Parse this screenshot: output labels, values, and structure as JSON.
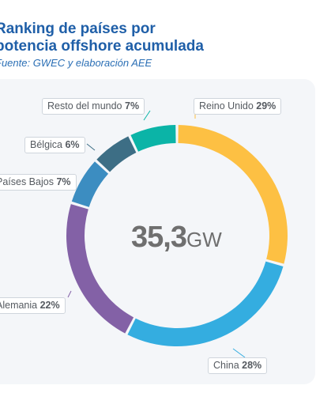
{
  "title_line1": "Ranking de países por",
  "title_line2": "potencia offshore acumulada",
  "source": "Fuente: GWEC y elaboración AEE",
  "center_value": "35,3",
  "center_unit": "GW",
  "chart_data": {
    "type": "pie",
    "donut": true,
    "categories": [
      "Reino Unido",
      "China",
      "Alemania",
      "Países Bajos",
      "Bélgica",
      "Resto del mundo"
    ],
    "values": [
      29,
      28,
      22,
      7,
      6,
      7
    ],
    "value_labels": [
      "29%",
      "28%",
      "22%",
      "7%",
      "6%",
      "7%"
    ],
    "colors": [
      "#fdc043",
      "#34ade0",
      "#8361a6",
      "#3c8dc1",
      "#3d6e85",
      "#0bb4a7"
    ],
    "total_label": "35,3 GW"
  }
}
